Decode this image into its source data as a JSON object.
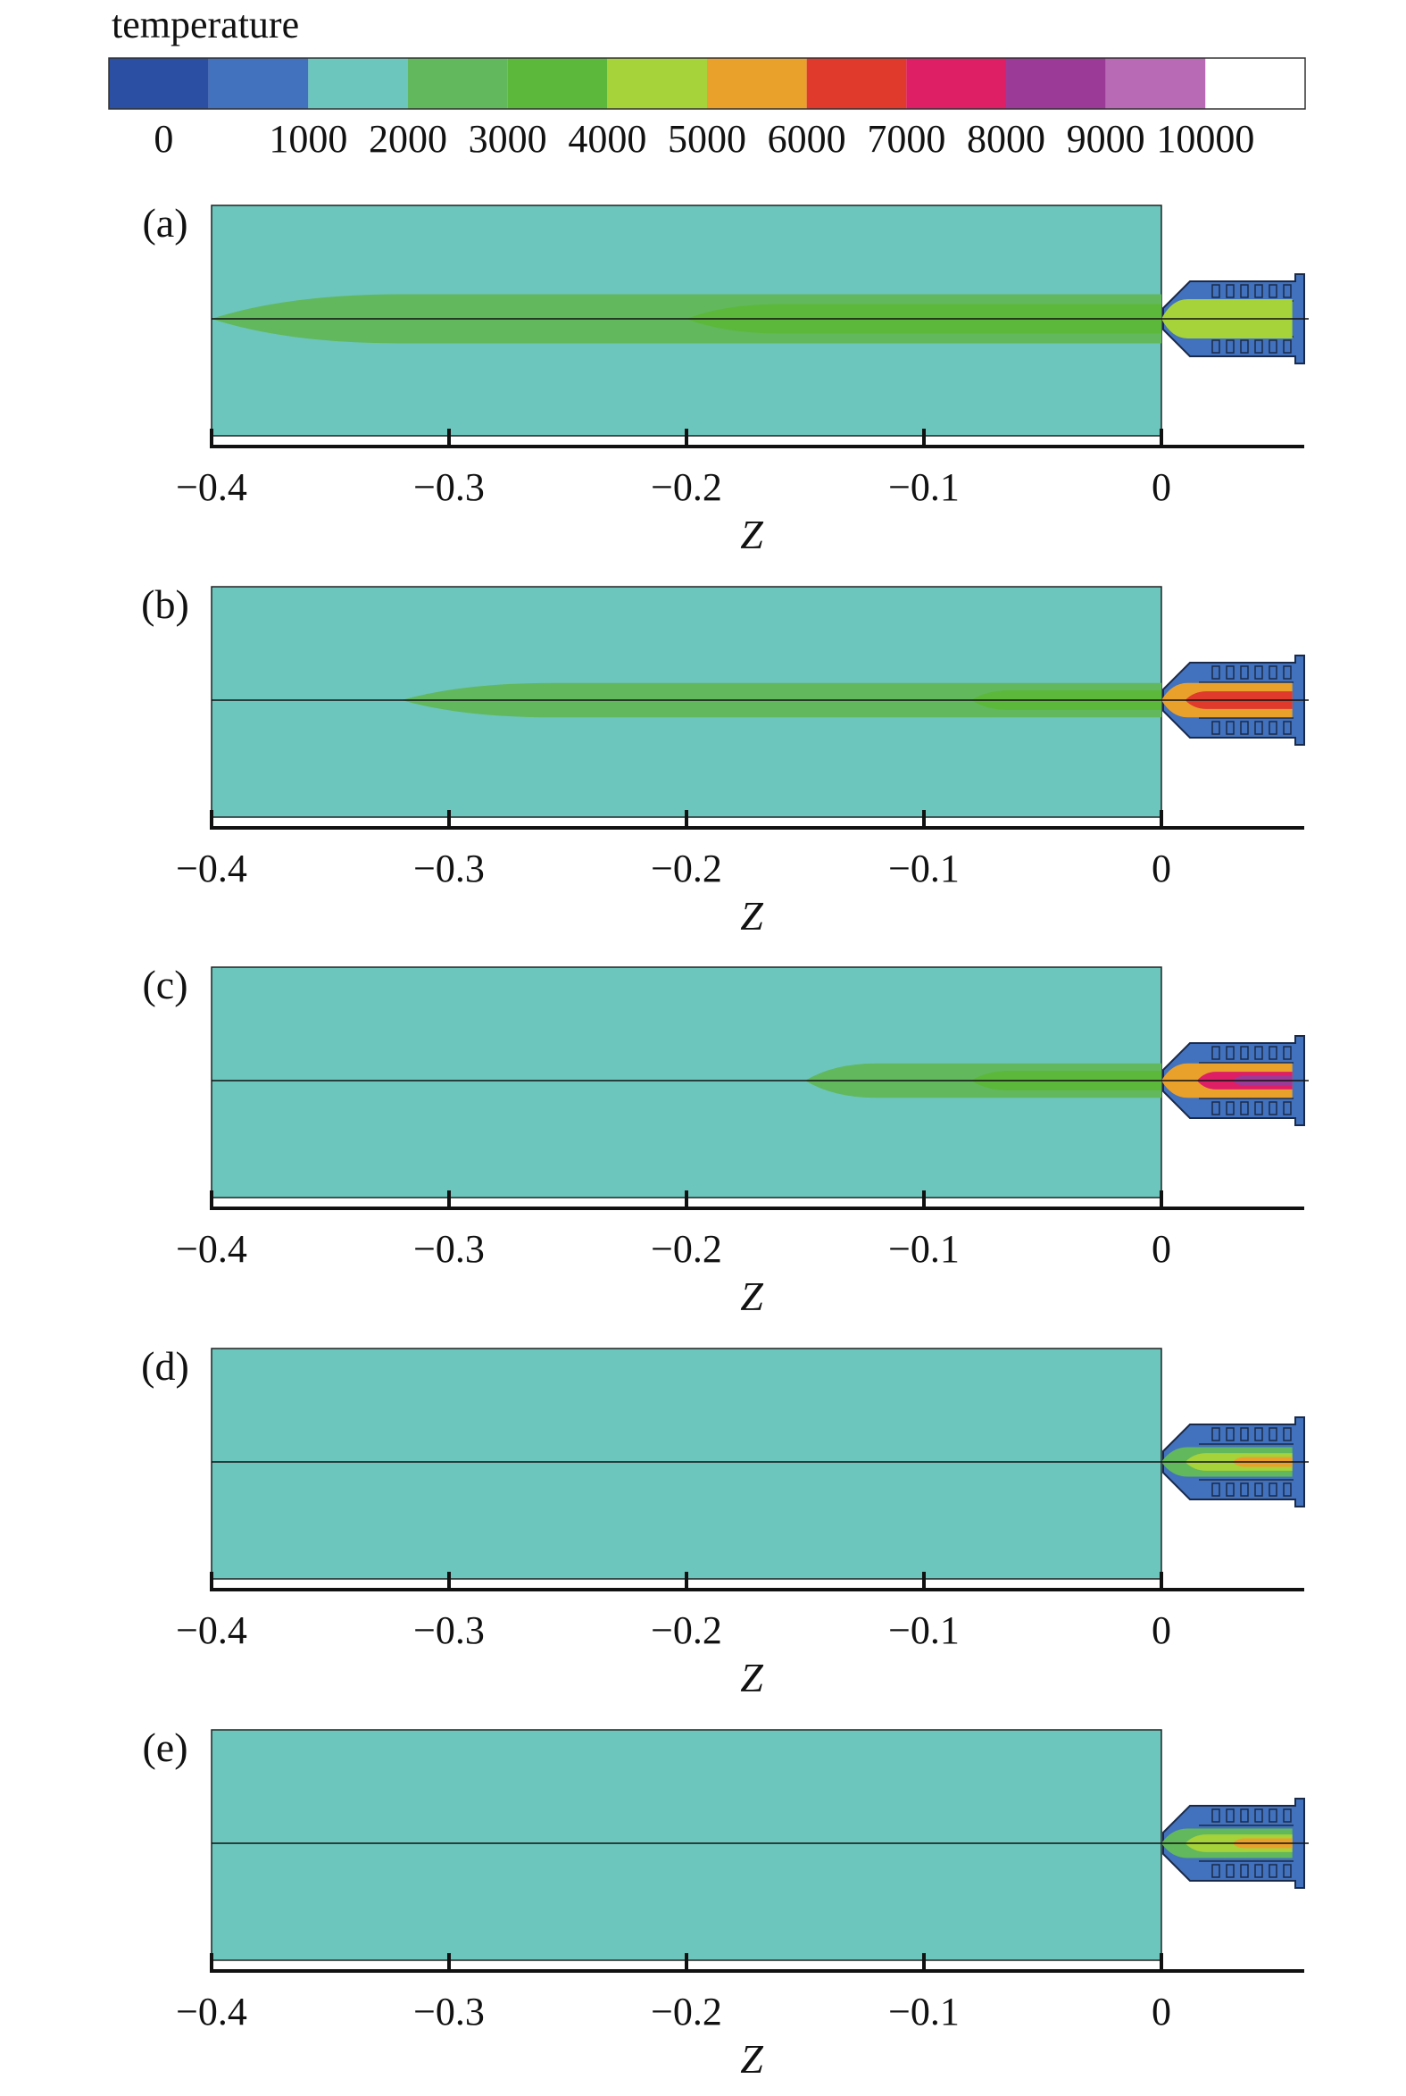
{
  "colorbar": {
    "title": "temperature",
    "levels": [
      0,
      1000,
      2000,
      3000,
      4000,
      5000,
      6000,
      7000,
      8000,
      9000,
      10000
    ],
    "tick_labels": [
      "0",
      "1000",
      "2000",
      "3000",
      "4000",
      "5000",
      "6000",
      "7000",
      "8000",
      "9000",
      "10000"
    ],
    "colors": [
      "#2b4fa2",
      "#4272bd",
      "#6cc6bd",
      "#62b85c",
      "#5cb83a",
      "#a6d23a",
      "#e9a12c",
      "#df3a2c",
      "#de1f66",
      "#9c3a98",
      "#b86bb4",
      "#ffffff"
    ]
  },
  "chart_data": [
    {
      "type": "heatmap",
      "panel_label": "(a)",
      "xlabel": "Z",
      "xlim": [
        -0.4,
        0.06
      ],
      "ticks": [
        -0.4,
        -0.3,
        -0.2,
        -0.1,
        0
      ],
      "tick_labels": [
        "−0.4",
        "−0.3",
        "−0.2",
        "−0.1",
        "0"
      ],
      "background_temperature": 1000,
      "jet": [
        {
          "z_start": -0.4,
          "z_end": 0.0,
          "half_width": 0.005,
          "temperature": 2000
        },
        {
          "z_start": -0.2,
          "z_end": 0.0,
          "half_width": 0.003,
          "temperature": 3000
        },
        {
          "z_start": 0.0,
          "z_end": 0.055,
          "half_width": 0.004,
          "temperature": 4000
        }
      ]
    },
    {
      "type": "heatmap",
      "panel_label": "(b)",
      "xlabel": "Z",
      "xlim": [
        -0.4,
        0.06
      ],
      "ticks": [
        -0.4,
        -0.3,
        -0.2,
        -0.1,
        0
      ],
      "tick_labels": [
        "−0.4",
        "−0.3",
        "−0.2",
        "−0.1",
        "0"
      ],
      "background_temperature": 1000,
      "jet": [
        {
          "z_start": -0.32,
          "z_end": 0.0,
          "half_width": 0.0035,
          "temperature": 2000
        },
        {
          "z_start": -0.08,
          "z_end": 0.0,
          "half_width": 0.002,
          "temperature": 3000
        },
        {
          "z_start": 0.0,
          "z_end": 0.055,
          "half_width": 0.0035,
          "temperature": 5000
        },
        {
          "z_start": 0.01,
          "z_end": 0.055,
          "half_width": 0.0018,
          "temperature": 6000
        }
      ]
    },
    {
      "type": "heatmap",
      "panel_label": "(c)",
      "xlabel": "Z",
      "xlim": [
        -0.4,
        0.06
      ],
      "ticks": [
        -0.4,
        -0.3,
        -0.2,
        -0.1,
        0
      ],
      "tick_labels": [
        "−0.4",
        "−0.3",
        "−0.2",
        "−0.1",
        "0"
      ],
      "background_temperature": 1000,
      "jet": [
        {
          "z_start": -0.15,
          "z_end": 0.0,
          "half_width": 0.0035,
          "temperature": 2000
        },
        {
          "z_start": -0.08,
          "z_end": 0.0,
          "half_width": 0.002,
          "temperature": 3000
        },
        {
          "z_start": 0.0,
          "z_end": 0.055,
          "half_width": 0.0035,
          "temperature": 5000
        },
        {
          "z_start": 0.015,
          "z_end": 0.055,
          "half_width": 0.0018,
          "temperature": 7000
        },
        {
          "z_start": 0.03,
          "z_end": 0.055,
          "half_width": 0.001,
          "temperature": 8000
        }
      ]
    },
    {
      "type": "heatmap",
      "panel_label": "(d)",
      "xlabel": "Z",
      "xlim": [
        -0.4,
        0.06
      ],
      "ticks": [
        -0.4,
        -0.3,
        -0.2,
        -0.1,
        0
      ],
      "tick_labels": [
        "−0.4",
        "−0.3",
        "−0.2",
        "−0.1",
        "0"
      ],
      "background_temperature": 1000,
      "jet": [
        {
          "z_start": 0.0,
          "z_end": 0.055,
          "half_width": 0.003,
          "temperature": 2000
        },
        {
          "z_start": 0.01,
          "z_end": 0.055,
          "half_width": 0.0018,
          "temperature": 4000
        },
        {
          "z_start": 0.03,
          "z_end": 0.055,
          "half_width": 0.001,
          "temperature": 5000
        }
      ]
    },
    {
      "type": "heatmap",
      "panel_label": "(e)",
      "xlabel": "Z",
      "xlim": [
        -0.4,
        0.06
      ],
      "ticks": [
        -0.4,
        -0.3,
        -0.2,
        -0.1,
        0
      ],
      "tick_labels": [
        "−0.4",
        "−0.3",
        "−0.2",
        "−0.1",
        "0"
      ],
      "background_temperature": 1000,
      "jet": [
        {
          "z_start": 0.0,
          "z_end": 0.055,
          "half_width": 0.003,
          "temperature": 2000
        },
        {
          "z_start": 0.01,
          "z_end": 0.055,
          "half_width": 0.0018,
          "temperature": 4000
        },
        {
          "z_start": 0.03,
          "z_end": 0.055,
          "half_width": 0.001,
          "temperature": 5000
        }
      ]
    }
  ]
}
